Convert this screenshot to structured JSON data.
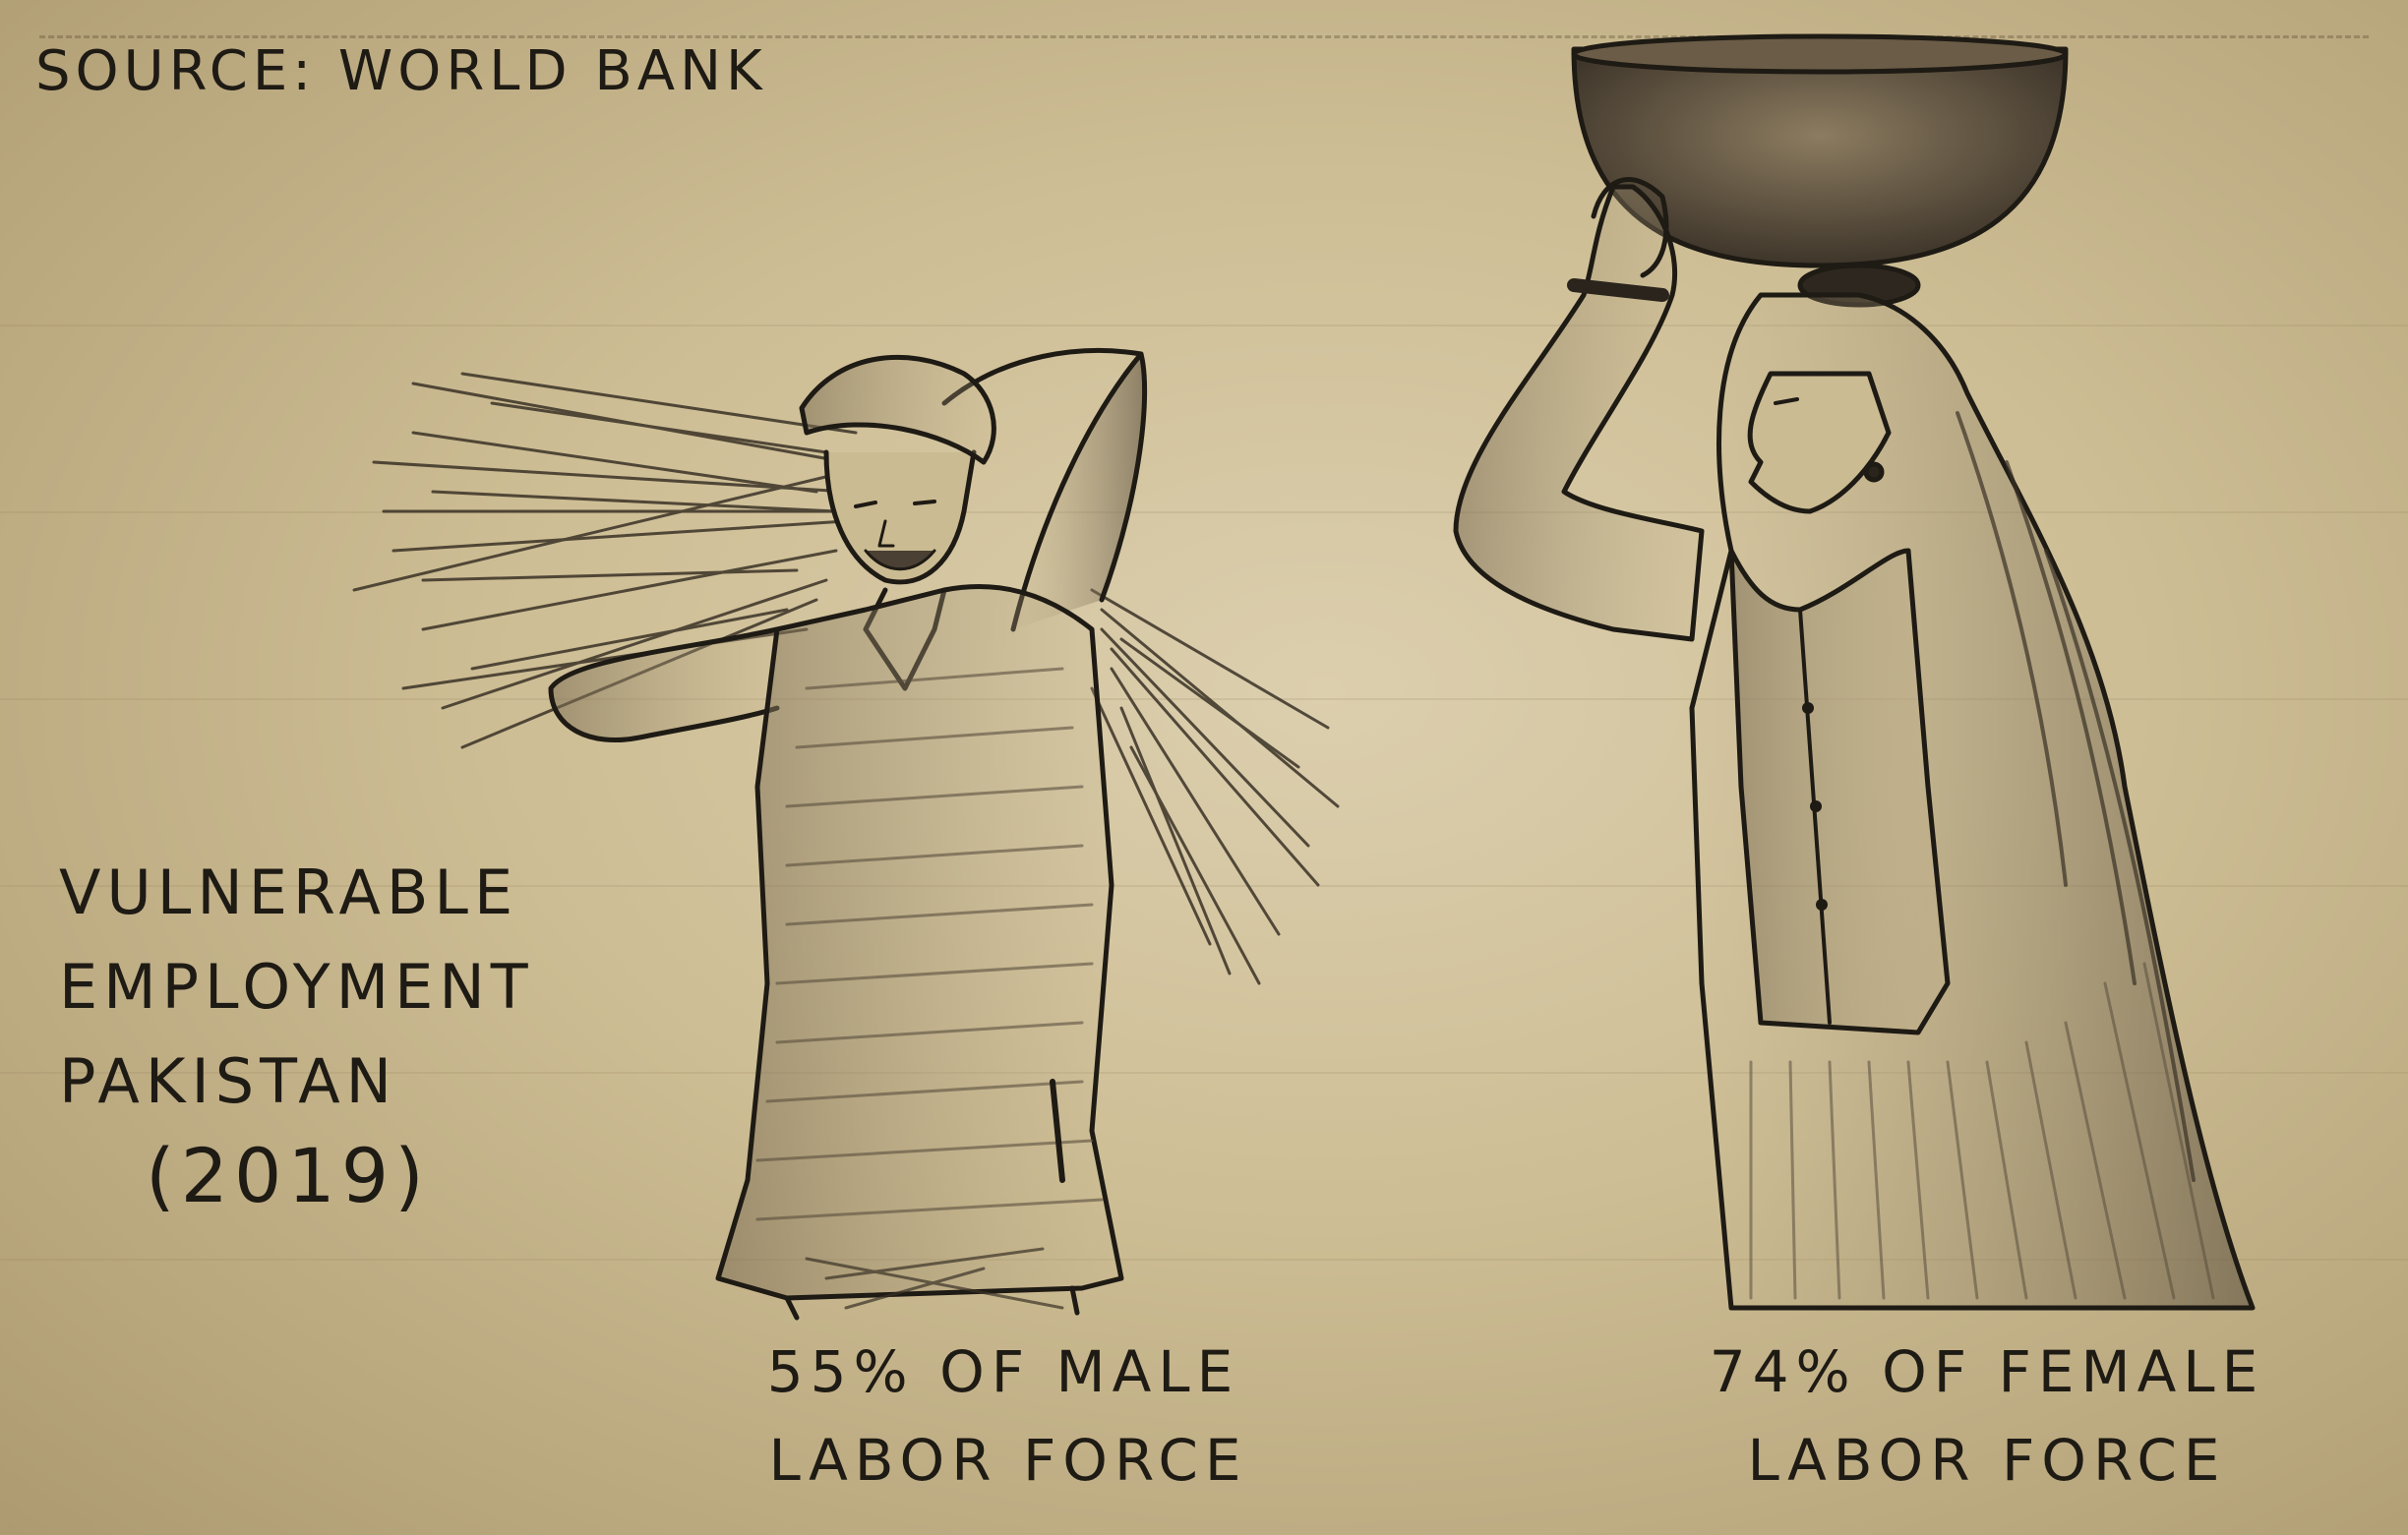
{
  "source": "SOURCE: WORLD BANK",
  "title": {
    "line1": "VULNERABLE",
    "line2": "EMPLOYMENT",
    "line3": "PAKISTAN",
    "year": "(2019)"
  },
  "male": {
    "line1": "55% OF MALE",
    "line2": "LABOR FORCE",
    "percent": 55
  },
  "female": {
    "line1": "74% OF FEMALE",
    "line2": "LABOR FORCE",
    "percent": 74
  },
  "colors": {
    "paper": "#d6c7a2",
    "pencil": "#1e1a14",
    "shade": "#5a4f3e"
  }
}
